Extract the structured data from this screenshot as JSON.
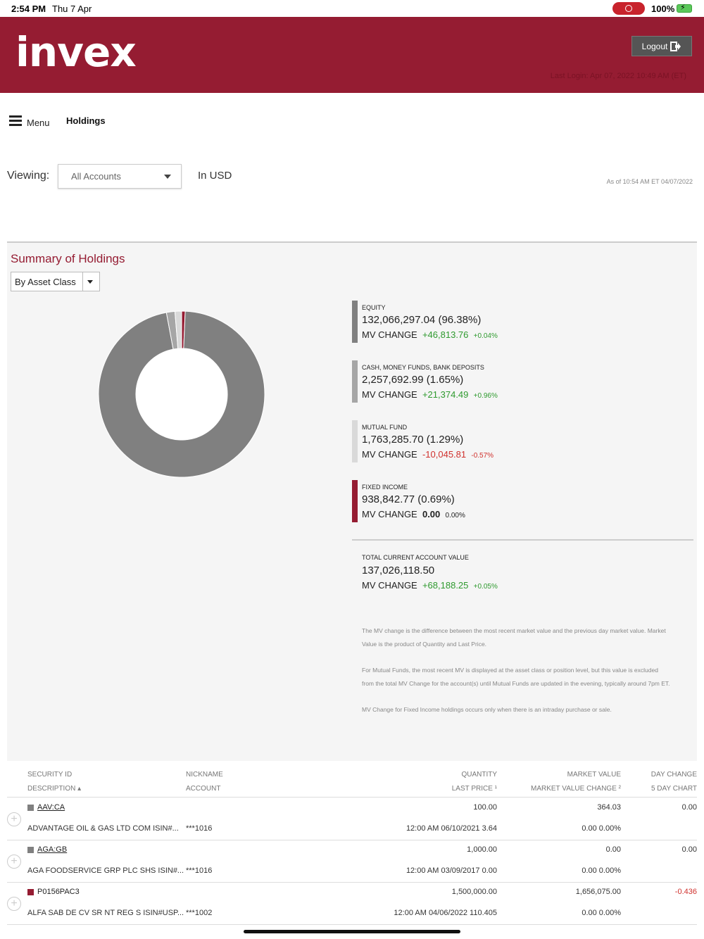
{
  "status_bar": {
    "time": "2:54 PM",
    "date": "Thu 7 Apr",
    "battery": "100%"
  },
  "header": {
    "logo": "invex",
    "logout_label": "Logout",
    "last_login": "Last Login: Apr 07, 2022 10:49 AM (ET)",
    "brand_color": "#951c32"
  },
  "nav": {
    "menu_label": "Menu",
    "page_label": "Holdings"
  },
  "filters": {
    "viewing_label": "Viewing:",
    "account_value": "All Accounts",
    "currency": "In USD",
    "as_of": "As of 10:54 AM ET 04/07/2022"
  },
  "summary": {
    "title": "Summary of Holdings",
    "group_by": "By Asset Class",
    "assets": [
      {
        "name": "EQUITY",
        "value": "132,066,297.04",
        "pct": "(96.38%)",
        "mv_label": "MV CHANGE",
        "mv_change": "+46,813.76",
        "mv_pct": "+0.04%",
        "trend": "pos",
        "color": "#808080",
        "share": 96.38
      },
      {
        "name": "CASH, MONEY FUNDS, BANK DEPOSITS",
        "value": "2,257,692.99",
        "pct": "(1.65%)",
        "mv_label": "MV CHANGE",
        "mv_change": "+21,374.49",
        "mv_pct": "+0.96%",
        "trend": "pos",
        "color": "#a6a6a6",
        "share": 1.65
      },
      {
        "name": "MUTUAL FUND",
        "value": "1,763,285.70",
        "pct": "(1.29%)",
        "mv_label": "MV CHANGE",
        "mv_change": "-10,045.81",
        "mv_pct": "-0.57%",
        "trend": "neg",
        "color": "#d9d9d9",
        "share": 1.29
      },
      {
        "name": "FIXED INCOME",
        "value": "938,842.77",
        "pct": "(0.69%)",
        "mv_label": "MV CHANGE",
        "mv_change": "0.00",
        "mv_pct": "0.00%",
        "trend": "neutral",
        "color": "#951c32",
        "share": 0.69
      }
    ],
    "total": {
      "name": "TOTAL CURRENT ACCOUNT VALUE",
      "value": "137,026,118.50",
      "mv_label": "MV CHANGE",
      "mv_change": "+68,188.25",
      "mv_pct": "+0.05%"
    },
    "notes": [
      "The MV change is the difference between the most recent market value and the previous day market value. Market Value is the product of Quantity and Last Price.",
      "For Mutual Funds, the most recent MV is displayed at the asset class or position level, but this value is excluded from the total MV Change for the account(s) until Mutual Funds are updated in the evening, typically around 7pm ET.",
      "MV Change for Fixed Income holdings occurs only when there is an intraday purchase or sale."
    ]
  },
  "table": {
    "headers": {
      "security_id": "SECURITY ID",
      "description": "DESCRIPTION ▴",
      "nickname": "NICKNAME",
      "account": "ACCOUNT",
      "quantity": "QUANTITY",
      "last_price": "LAST PRICE ¹",
      "market_value": "MARKET VALUE",
      "mv_change": "MARKET VALUE CHANGE ²",
      "day_change": "DAY CHANGE",
      "five_day": "5 DAY CHART"
    },
    "rows": [
      {
        "security_id": "AAV:CA",
        "description": "ADVANTAGE OIL & GAS LTD COM ISIN#...",
        "account": "***1016",
        "quantity": "100.00",
        "last_price": "12:00 AM 06/10/2021  3.64",
        "market_value": "364.03",
        "mv_change": "0.00 0.00%",
        "day_change": "0.00",
        "color": "#808080",
        "trend": "neutral"
      },
      {
        "security_id": "AGA:GB",
        "description": "AGA FOODSERVICE GRP PLC SHS ISIN#...",
        "account": "***1016",
        "quantity": "1,000.00",
        "last_price": "12:00 AM 03/09/2017  0.00",
        "market_value": "0.00",
        "mv_change": "0.00 0.00%",
        "day_change": "0.00",
        "color": "#808080",
        "trend": "neutral"
      },
      {
        "security_id": "P0156PAC3",
        "description": "ALFA SAB DE CV SR NT REG S ISIN#USP...",
        "account": "***1002",
        "quantity": "1,500,000.00",
        "last_price": "12:00 AM 04/06/2022  110.405",
        "market_value": "1,656,075.00",
        "mv_change": "0.00 0.00%",
        "day_change": "-0.436",
        "color": "#951c32",
        "trend": "neg"
      }
    ]
  }
}
